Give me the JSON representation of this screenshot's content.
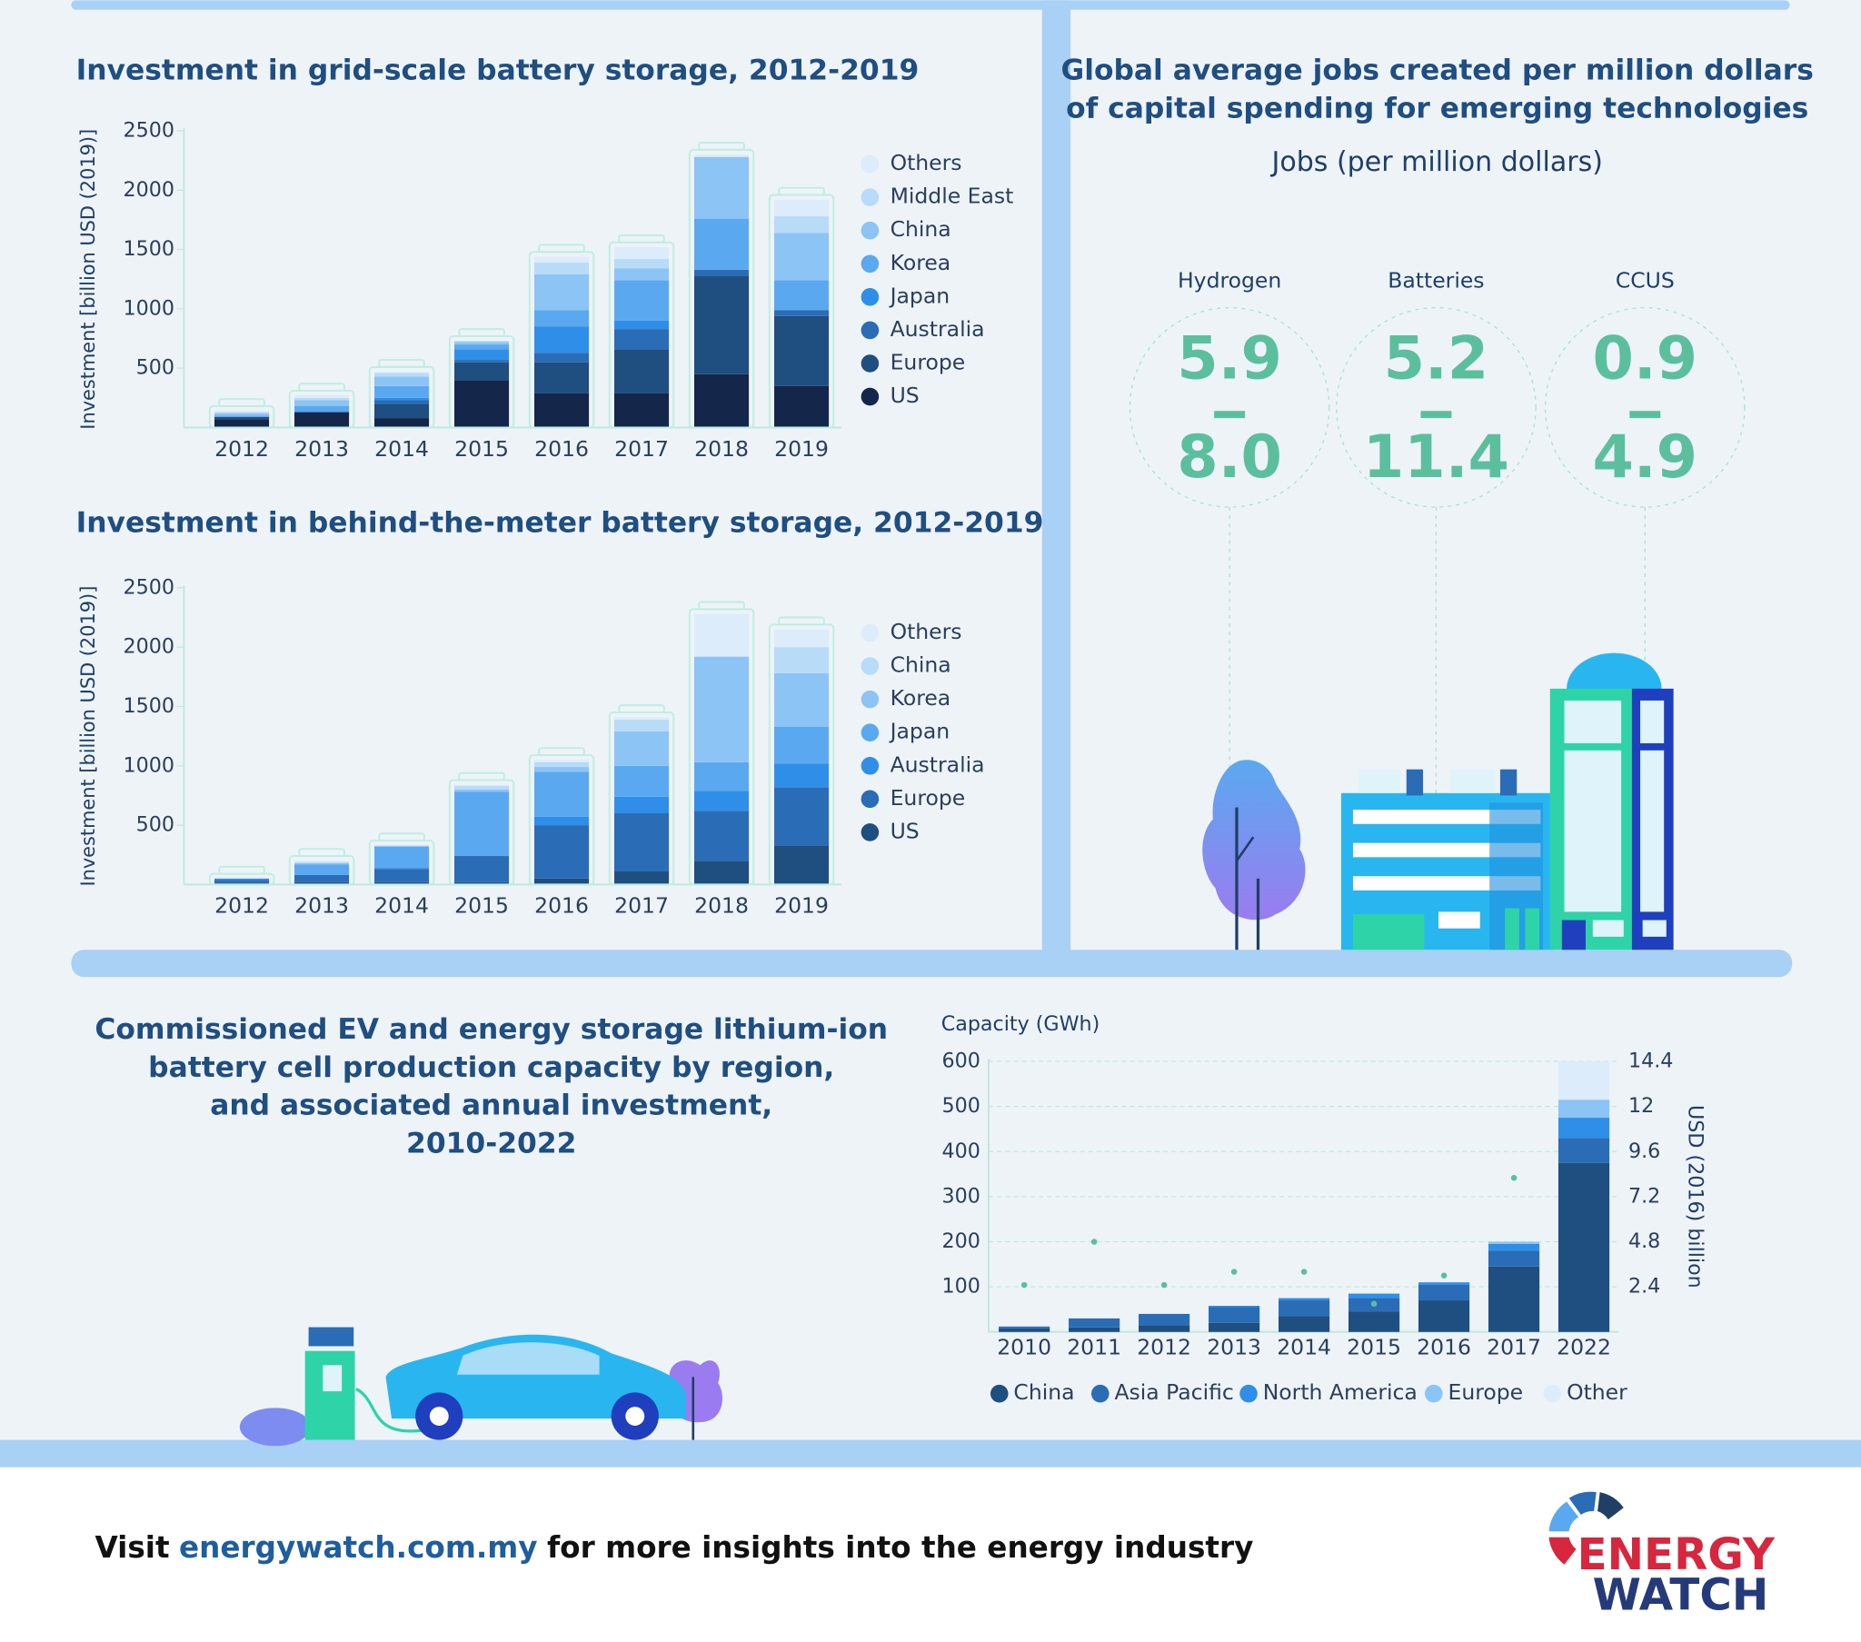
{
  "chart_data": [
    {
      "type": "bar",
      "stacked": true,
      "title": "Investment in grid-scale battery storage, 2012-2019",
      "ylabel": "Investment [billion USD (2019)]",
      "categories": [
        "2012",
        "2013",
        "2014",
        "2015",
        "2016",
        "2017",
        "2018",
        "2019"
      ],
      "ylim": [
        0,
        2500
      ],
      "yticks": [
        500,
        1000,
        1500,
        2000,
        2500
      ],
      "grid": false,
      "legend": "right",
      "series": [
        {
          "name": "US",
          "color": "#14264a",
          "values": [
            70,
            130,
            80,
            400,
            290,
            290,
            450,
            350
          ]
        },
        {
          "name": "Europe",
          "color": "#1f4e80",
          "values": [
            20,
            0,
            120,
            150,
            260,
            370,
            830,
            590
          ]
        },
        {
          "name": "Australia",
          "color": "#2a6cb5",
          "values": [
            0,
            0,
            30,
            20,
            80,
            170,
            50,
            50
          ]
        },
        {
          "name": "Japan",
          "color": "#2f8fe8",
          "values": [
            0,
            0,
            20,
            90,
            220,
            70,
            0,
            0
          ]
        },
        {
          "name": "Korea",
          "color": "#5aa9f0",
          "values": [
            10,
            50,
            100,
            40,
            140,
            340,
            430,
            250
          ]
        },
        {
          "name": "China",
          "color": "#8cc4f5",
          "values": [
            20,
            50,
            80,
            20,
            300,
            100,
            520,
            400
          ]
        },
        {
          "name": "Middle East",
          "color": "#b8dbf8",
          "values": [
            10,
            20,
            30,
            10,
            100,
            80,
            0,
            140
          ]
        },
        {
          "name": "Others",
          "color": "#dcecfb",
          "values": [
            10,
            20,
            10,
            0,
            50,
            100,
            20,
            140
          ]
        }
      ]
    },
    {
      "type": "bar",
      "stacked": true,
      "title": "Investment in behind-the-meter battery storage, 2012-2019",
      "ylabel": "Investment [billion USD (2019)]",
      "categories": [
        "2012",
        "2013",
        "2014",
        "2015",
        "2016",
        "2017",
        "2018",
        "2019"
      ],
      "ylim": [
        0,
        2500
      ],
      "yticks": [
        500,
        1000,
        1500,
        2000,
        2500
      ],
      "grid": false,
      "legend": "right",
      "series": [
        {
          "name": "US",
          "color": "#1f4e80",
          "values": [
            10,
            20,
            20,
            20,
            50,
            110,
            200,
            330
          ]
        },
        {
          "name": "Europe",
          "color": "#2a6cb5",
          "values": [
            30,
            60,
            110,
            220,
            450,
            490,
            420,
            490
          ]
        },
        {
          "name": "Australia",
          "color": "#2f8fe8",
          "values": [
            10,
            0,
            10,
            0,
            70,
            140,
            170,
            200
          ]
        },
        {
          "name": "Japan",
          "color": "#5aa9f0",
          "values": [
            0,
            90,
            180,
            540,
            380,
            260,
            240,
            310
          ]
        },
        {
          "name": "Korea",
          "color": "#8cc4f5",
          "values": [
            0,
            10,
            0,
            20,
            40,
            290,
            890,
            450
          ]
        },
        {
          "name": "China",
          "color": "#b8dbf8",
          "values": [
            0,
            10,
            10,
            30,
            40,
            100,
            0,
            220
          ]
        },
        {
          "name": "Others",
          "color": "#dcecfb",
          "values": [
            0,
            10,
            0,
            10,
            20,
            20,
            360,
            150
          ]
        }
      ]
    },
    {
      "type": "bar",
      "stacked": true,
      "title": [
        "Commissioned EV and energy storage lithium-ion",
        "battery cell production capacity by region,",
        "and associated annual investment,",
        "2010-2022"
      ],
      "ylabel": "Capacity (GWh)",
      "y2label": "USD (2016) billion",
      "categories": [
        "2010",
        "2011",
        "2012",
        "2013",
        "2014",
        "2015",
        "2016",
        "2017",
        "2022"
      ],
      "ylim": [
        0,
        600
      ],
      "yticks": [
        100,
        200,
        300,
        400,
        500,
        600
      ],
      "y2lim": [
        0,
        14.4
      ],
      "y2ticks": [
        2.4,
        4.8,
        7.2,
        9.6,
        12,
        14.4
      ],
      "grid": true,
      "legend": "bottom",
      "series": [
        {
          "name": "China",
          "color": "#1f4e80",
          "values": [
            8,
            10,
            15,
            20,
            35,
            45,
            70,
            145,
            375
          ]
        },
        {
          "name": "Asia Pacific",
          "color": "#2a6cb5",
          "values": [
            4,
            20,
            25,
            35,
            35,
            30,
            35,
            35,
            55
          ]
        },
        {
          "name": "North America",
          "color": "#2f8fe8",
          "values": [
            0,
            0,
            0,
            3,
            5,
            10,
            5,
            15,
            45
          ]
        },
        {
          "name": "Europe",
          "color": "#8cc4f5",
          "values": [
            0,
            0,
            0,
            0,
            0,
            0,
            0,
            5,
            40
          ]
        },
        {
          "name": "Other",
          "color": "#dcecfb",
          "values": [
            0,
            0,
            0,
            0,
            0,
            0,
            0,
            0,
            85
          ]
        },
        {
          "axis": "y2",
          "color": "#5bbf9e",
          "values": [
            2.5,
            4.8,
            2.5,
            3.2,
            3.2,
            1.5,
            3.0,
            8.2,
            null
          ]
        }
      ]
    }
  ],
  "jobs": {
    "title": [
      "Global average jobs created per million dollars",
      "of capital spending for emerging technologies"
    ],
    "subtitle": "Jobs (per million dollars)",
    "items": [
      {
        "name": "Hydrogen",
        "low": "5.9",
        "high": "8.0"
      },
      {
        "name": "Batteries",
        "low": "5.2",
        "high": "11.4"
      },
      {
        "name": "CCUS",
        "low": "0.9",
        "high": "4.9"
      }
    ]
  },
  "footer": {
    "before": "Visit",
    "link": "energywatch.com.my",
    "after": "for more insights into the energy industry"
  },
  "logo": {
    "line1": "ENERGY",
    "line2": "WATCH"
  }
}
